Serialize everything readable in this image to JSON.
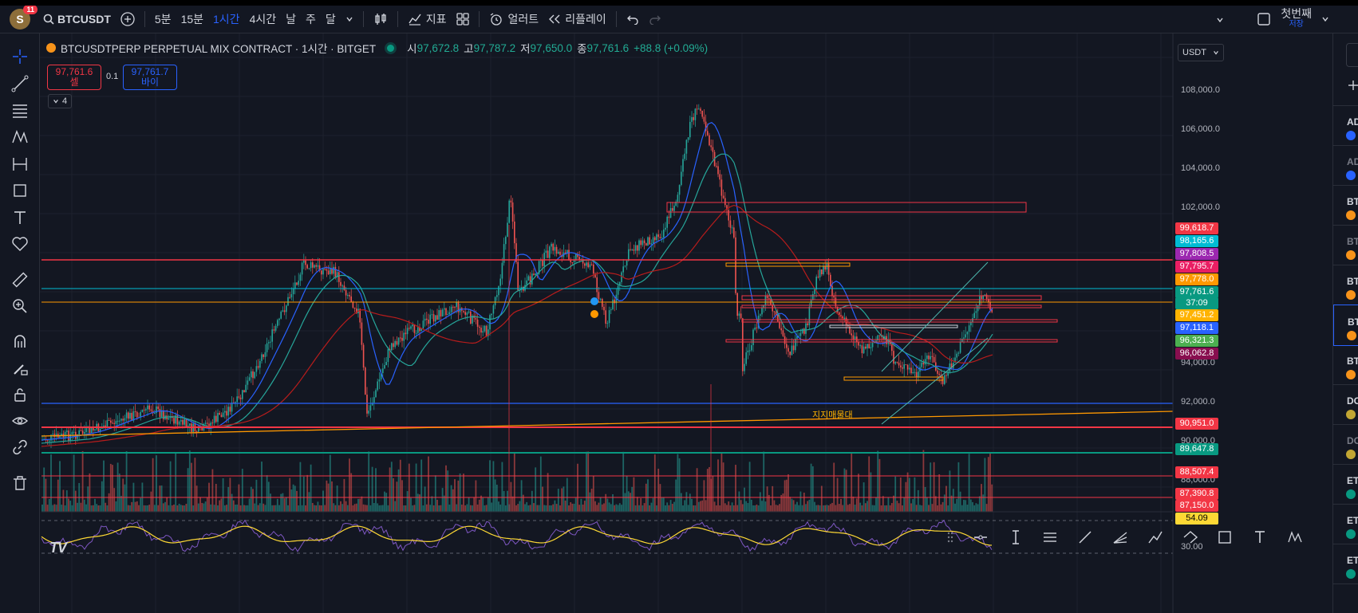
{
  "topbar": {
    "avatar_initial": "S",
    "notifications": "11",
    "symbol": "BTCUSDT",
    "intervals": [
      "5분",
      "15분",
      "1시간",
      "4시간",
      "날",
      "주",
      "달"
    ],
    "active_interval": "1시간",
    "indicators_label": "지표",
    "alerts_label": "얼러트",
    "replay_label": "리플레이",
    "layout_name": "첫번째",
    "layout_sub": "저장"
  },
  "legend": {
    "title": "BTCUSDTPERP PERPETUAL MIX CONTRACT · 1시간 · BITGET",
    "open_label": "시",
    "open": "97,672.8",
    "high_label": "고",
    "high": "97,787.2",
    "low_label": "저",
    "low": "97,650.0",
    "close_label": "종",
    "close": "97,761.6",
    "change": "+88.8 (+0.09%)"
  },
  "trade": {
    "sell_price": "97,761.6",
    "sell_label": "셀",
    "spread": "0.1",
    "buy_price": "97,761.7",
    "buy_label": "바이",
    "indicators_count": "4"
  },
  "currency": "USDT",
  "price_axis": [
    "108,000.0",
    "106,000.0",
    "104,000.0",
    "102,000.0",
    "94,000.0",
    "92,000.0",
    "90,000.0",
    "88,000.0",
    "30.00"
  ],
  "price_labels": [
    {
      "text": "99,618.7",
      "color": "#f23645"
    },
    {
      "text": "98,165.6",
      "color": "#00bcd4"
    },
    {
      "text": "97,808.5",
      "color": "#9c27b0"
    },
    {
      "text": "97,795.7",
      "color": "#e91e63"
    },
    {
      "text": "97,778.0",
      "color": "#ff9800"
    },
    {
      "text": "97,761.6",
      "color": "#089981"
    },
    {
      "text": "37:09",
      "color": "#089981"
    },
    {
      "text": "97,451.2",
      "color": "#ffb300"
    },
    {
      "text": "97,118.1",
      "color": "#2962ff"
    },
    {
      "text": "96,321.3",
      "color": "#4caf50"
    },
    {
      "text": "96,062.8",
      "color": "#880e4f"
    },
    {
      "text": "90,951.0",
      "color": "#f23645"
    },
    {
      "text": "89,647.8",
      "color": "#089981"
    },
    {
      "text": "88,507.4",
      "color": "#f23645"
    },
    {
      "text": "87,390.8",
      "color": "#f23645"
    },
    {
      "text": "87,150.0",
      "color": "#f23645"
    },
    {
      "text": "54.09",
      "color": "#fdd835"
    }
  ],
  "annotation": "지지매물대",
  "watchlist": [
    "AD",
    "AD",
    "BT",
    "BT",
    "BT",
    "BT",
    "BT",
    "DC",
    "DC",
    "ET",
    "ET",
    "ET"
  ],
  "logo": "TV"
}
